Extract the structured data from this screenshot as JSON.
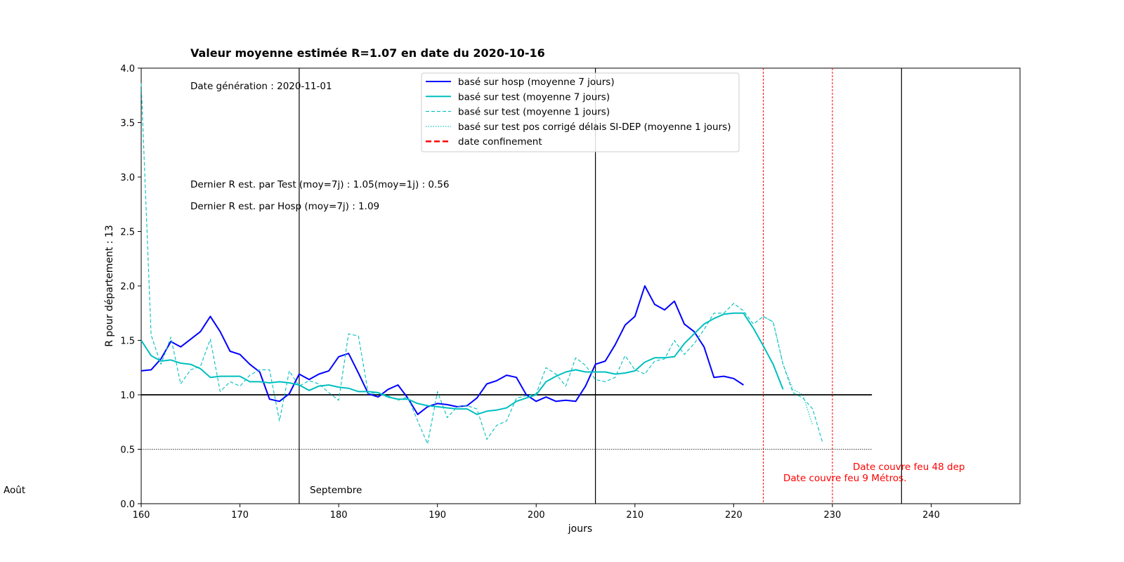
{
  "chart_data": {
    "type": "line",
    "title": "Valeur moyenne estimée R=1.07 en date du  2020-10-16",
    "xlabel": "jours",
    "ylabel": "R pour département : 13",
    "xlim": [
      160,
      249
    ],
    "ylim": [
      0,
      4.0
    ],
    "xticks": [
      160,
      170,
      180,
      190,
      200,
      210,
      220,
      230,
      240
    ],
    "yticks": [
      "0.0",
      "0.5",
      "1.0",
      "1.5",
      "2.0",
      "2.5",
      "3.0",
      "3.5",
      "4.0"
    ],
    "grid": false,
    "legend_position": "top-center",
    "annotations": {
      "date_generation": "Date génération : 2020-11-01",
      "last_r_test": "Dernier R est. par Test    (moy=7j) : 1.05(moy=1j) : 0.56",
      "last_r_hosp": "Dernier R est. par Hosp    (moy=7j) : 1.09",
      "month_aout": "Août",
      "month_septembre": "Septembre",
      "couvre_feu_48": "Date couvre feu 48 dep",
      "couvre_feu_9": "Date couvre feu 9 Métros."
    },
    "month_lines": [
      176,
      206,
      237
    ],
    "red_lines": [
      223,
      230
    ],
    "hlines": [
      {
        "y": 1.0,
        "style": "solid",
        "x_end": 234
      },
      {
        "y": 0.5,
        "style": "dotted",
        "x_end": 234
      }
    ],
    "series": [
      {
        "name": "basé sur hosp (moyenne 7 jours)",
        "color": "#0000ff",
        "style": "solid",
        "x_start": 160,
        "values": [
          1.22,
          1.23,
          1.33,
          1.49,
          1.44,
          1.51,
          1.58,
          1.72,
          1.58,
          1.4,
          1.37,
          1.28,
          1.21,
          0.96,
          0.94,
          1.01,
          1.19,
          1.14,
          1.19,
          1.22,
          1.35,
          1.38,
          1.2,
          1.01,
          0.98,
          1.05,
          1.09,
          0.97,
          0.82,
          0.89,
          0.92,
          0.91,
          0.89,
          0.9,
          0.97,
          1.1,
          1.13,
          1.18,
          1.16,
          1.0,
          0.94,
          0.98,
          0.94,
          0.95,
          0.94,
          1.08,
          1.28,
          1.31,
          1.46,
          1.64,
          1.72,
          2.0,
          1.83,
          1.78,
          1.86,
          1.65,
          1.58,
          1.44,
          1.16,
          1.17,
          1.15,
          1.09
        ]
      },
      {
        "name": "basé sur test (moyenne 7 jours)",
        "color": "#00bfbf",
        "style": "solid",
        "x_start": 160,
        "values": [
          1.5,
          1.36,
          1.31,
          1.32,
          1.29,
          1.28,
          1.24,
          1.16,
          1.17,
          1.17,
          1.17,
          1.12,
          1.12,
          1.11,
          1.12,
          1.11,
          1.09,
          1.04,
          1.08,
          1.09,
          1.07,
          1.06,
          1.03,
          1.03,
          1.02,
          0.98,
          0.96,
          0.96,
          0.92,
          0.9,
          0.89,
          0.88,
          0.87,
          0.87,
          0.82,
          0.85,
          0.86,
          0.88,
          0.94,
          0.97,
          1.0,
          1.12,
          1.17,
          1.21,
          1.23,
          1.21,
          1.21,
          1.21,
          1.19,
          1.2,
          1.22,
          1.3,
          1.34,
          1.34,
          1.35,
          1.47,
          1.56,
          1.65,
          1.7,
          1.74,
          1.75,
          1.75,
          1.61,
          1.45,
          1.28,
          1.05
        ]
      },
      {
        "name": "basé sur test (moyenne 1 jours)",
        "color": "#00bfbf",
        "style": "dashed",
        "x_start": 160,
        "values": [
          3.86,
          1.55,
          1.28,
          1.53,
          1.1,
          1.23,
          1.26,
          1.51,
          1.03,
          1.12,
          1.08,
          1.18,
          1.23,
          1.23,
          0.76,
          1.22,
          1.08,
          1.13,
          1.1,
          1.02,
          0.95,
          1.56,
          1.54,
          1.01,
          1.02,
          0.99,
          0.95,
          0.98,
          0.76,
          0.55,
          1.03,
          0.79,
          0.89,
          0.9,
          0.87,
          0.59,
          0.72,
          0.76,
          0.97,
          0.99,
          1.01,
          1.25,
          1.19,
          1.08,
          1.34,
          1.27,
          1.14,
          1.12,
          1.16,
          1.36,
          1.23,
          1.19,
          1.31,
          1.33,
          1.5,
          1.37,
          1.47,
          1.6,
          1.75,
          1.75,
          1.84,
          1.77,
          1.65,
          1.72,
          1.67,
          1.28,
          1.02,
          0.97,
          0.87,
          0.56
        ]
      },
      {
        "name": "basé sur test pos corrigé délais SI-DEP (moyenne 1 jours)",
        "color": "#00bfbf",
        "style": "dotted",
        "x_start": 223,
        "values": [
          1.72,
          1.67,
          1.28,
          1.05,
          1.0,
          0.72
        ]
      },
      {
        "name": "date confinement",
        "color": "#ff0000",
        "style": "dashed-thick",
        "x_start": null,
        "values": []
      }
    ]
  }
}
